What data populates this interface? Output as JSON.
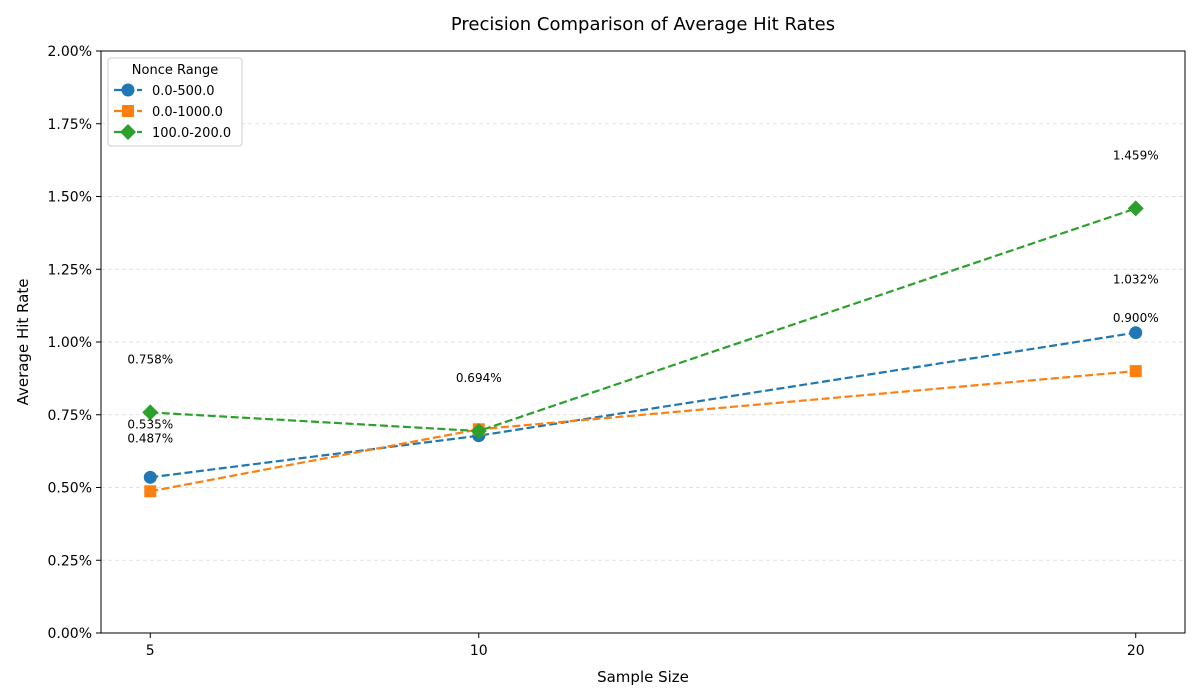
{
  "chart_data": {
    "type": "line",
    "title": "Precision Comparison of Average Hit Rates",
    "xlabel": "Sample Size",
    "ylabel": "Average Hit Rate",
    "x": [
      5,
      10,
      20
    ],
    "x_tick_labels": [
      "5",
      "10",
      "20"
    ],
    "xlim": [
      4.25,
      20.75
    ],
    "ylim": [
      0,
      2.0
    ],
    "y_ticks": [
      0,
      0.25,
      0.5,
      0.75,
      1.0,
      1.25,
      1.5,
      1.75,
      2.0
    ],
    "y_tick_labels": [
      "0.00%",
      "0.25%",
      "0.50%",
      "0.75%",
      "1.00%",
      "1.25%",
      "1.50%",
      "1.75%",
      "2.00%"
    ],
    "y_grid": true,
    "legend": {
      "title": "Nonce Range",
      "placement": "top-left"
    },
    "series": [
      {
        "name": "0.0-500.0",
        "color": "#1f77b4",
        "marker": "circle",
        "values": [
          0.535,
          0.678,
          1.032
        ],
        "labels": [
          "0.535%",
          "",
          "1.032%"
        ]
      },
      {
        "name": "0.0-1000.0",
        "color": "#ff7f0e",
        "marker": "square",
        "values": [
          0.487,
          0.7,
          0.9
        ],
        "labels": [
          "0.487%",
          "",
          "0.900%"
        ]
      },
      {
        "name": "100.0-200.0",
        "color": "#2ca02c",
        "marker": "diamond",
        "values": [
          0.758,
          0.694,
          1.459
        ],
        "labels": [
          "0.758%",
          "0.694%",
          "1.459%"
        ]
      }
    ]
  }
}
